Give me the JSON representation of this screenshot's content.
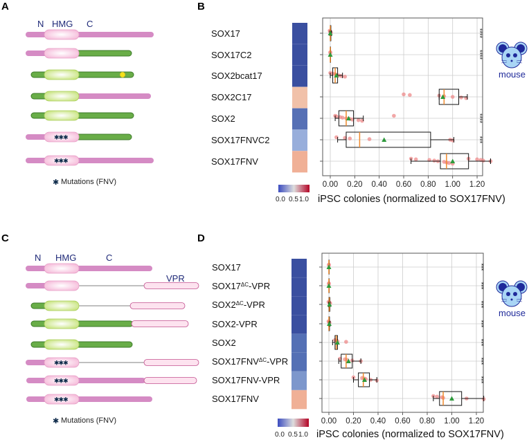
{
  "panels": {
    "A": {
      "label": "A",
      "domains": {
        "n": "N",
        "hmg": "HMG",
        "c": "C"
      },
      "legend": "Mutations (FNV)"
    },
    "B": {
      "label": "B"
    },
    "C": {
      "label": "C",
      "domains": {
        "n": "N",
        "hmg": "HMG",
        "c": "C",
        "vpr": "VPR"
      },
      "legend": "Mutations (FNV)"
    },
    "D": {
      "label": "D"
    }
  },
  "mouse_label": "mouse",
  "colorbar": {
    "labels": [
      "0.0",
      "0.5",
      "1.0"
    ],
    "colors": [
      "#3b4cc0",
      "#dddddd",
      "#b40426"
    ]
  },
  "colors": {
    "box": "#222222",
    "median": "#f08a2c",
    "mean": "#2e9a3c",
    "points": "#ee8a8a",
    "grid": "#cccccc"
  },
  "chart_data": [
    {
      "type": "box",
      "panel": "B",
      "xlabel": "iPSC colonies (normalized to SOX17FNV)",
      "xlim": [
        -0.05,
        1.35
      ],
      "xticks": [
        "0.00",
        "0.20",
        "0.40",
        "0.60",
        "0.80",
        "1.00",
        "1.20"
      ],
      "grid": true,
      "rows": [
        {
          "name": "SOX17",
          "q1": 0.0,
          "median": 0.0,
          "q3": 0.005,
          "whislo": -0.005,
          "whishi": 0.01,
          "mean": 0.0,
          "points": [
            -0.005,
            0.0,
            0.0,
            0.005
          ],
          "heat": 0.0,
          "heat_color": "#3a4fa0",
          "sig": "****"
        },
        {
          "name": "SOX17C2",
          "q1": 0.0,
          "median": 0.0,
          "q3": 0.0,
          "whislo": 0.0,
          "whishi": 0.0,
          "mean": 0.0,
          "points": [
            0.0,
            0.0
          ],
          "heat": 0.0,
          "heat_color": "#3a4fa0",
          "sig": "****"
        },
        {
          "name": "SOX2bcat17",
          "q1": 0.02,
          "median": 0.04,
          "q3": 0.06,
          "whislo": 0.0,
          "whishi": 0.1,
          "mean": 0.05,
          "points": [
            0.0,
            0.02,
            0.04,
            0.05,
            0.07,
            0.09,
            0.12
          ],
          "heat": 0.05,
          "heat_color": "#3a4fa0",
          "sig": ""
        },
        {
          "name": "SOX2C17",
          "q1": 0.89,
          "median": 0.93,
          "q3": 1.05,
          "whislo": 0.89,
          "whishi": 1.12,
          "mean": 0.92,
          "points": [
            0.6,
            0.65,
            0.89,
            0.93,
            1.0,
            1.07,
            1.11
          ],
          "heat": 0.92,
          "heat_color": "#f1c1a9",
          "sig": ""
        },
        {
          "name": "SOX2",
          "q1": 0.07,
          "median": 0.13,
          "q3": 0.19,
          "whislo": 0.04,
          "whishi": 0.27,
          "mean": 0.15,
          "points": [
            0.04,
            0.05,
            0.08,
            0.1,
            0.13,
            0.16,
            0.18,
            0.23,
            0.26,
            0.52
          ],
          "heat": 0.15,
          "heat_color": "#5670b5",
          "sig": "****"
        },
        {
          "name": "SOX17FNVC2",
          "q1": 0.13,
          "median": 0.24,
          "q3": 0.82,
          "whislo": 0.06,
          "whishi": 1.01,
          "mean": 0.44,
          "points": [
            0.05,
            0.12,
            0.16,
            0.32,
            0.98,
            1.0
          ],
          "heat": 0.44,
          "heat_color": "#98aedb",
          "sig": "***"
        },
        {
          "name": "SOX17FNV",
          "q1": 0.9,
          "median": 0.95,
          "q3": 1.13,
          "whislo": 0.66,
          "whishi": 1.31,
          "mean": 1.0,
          "points": [
            0.66,
            0.7,
            0.81,
            0.85,
            0.88,
            0.93,
            0.95,
            0.97,
            1.0,
            1.13,
            1.2,
            1.23,
            1.25,
            1.31
          ],
          "heat": 1.0,
          "heat_color": "#f0b096",
          "sig": ""
        }
      ]
    },
    {
      "type": "box",
      "panel": "D",
      "xlabel": "iPSC colonies (normalized to SOX17FNV)",
      "xlim": [
        -0.05,
        1.3
      ],
      "xticks": [
        "0.00",
        "0.20",
        "0.40",
        "0.60",
        "0.80",
        "1.00",
        "1.20"
      ],
      "grid": true,
      "rows": [
        {
          "name": "SOX17",
          "sup": "",
          "rest": "",
          "q1": 0.0,
          "median": 0.0,
          "q3": 0.0,
          "whislo": 0.0,
          "whishi": 0.0,
          "mean": 0.0,
          "points": [
            0.0,
            0.0
          ],
          "heat": 0.0,
          "heat_color": "#3a4fa0",
          "sig": "***"
        },
        {
          "name": "SOX17",
          "sup": "ΔC",
          "rest": "-VPR",
          "q1": 0.0,
          "median": 0.0,
          "q3": 0.0,
          "whislo": 0.0,
          "whishi": 0.0,
          "mean": 0.0,
          "points": [
            0.0,
            0.0
          ],
          "heat": 0.0,
          "heat_color": "#3a4fa0",
          "sig": "***"
        },
        {
          "name": "SOX2",
          "sup": "ΔC",
          "rest": "-VPR",
          "q1": 0.0,
          "median": 0.003,
          "q3": 0.008,
          "whislo": -0.003,
          "whishi": 0.01,
          "mean": 0.005,
          "points": [
            -0.003,
            0.005,
            0.01
          ],
          "heat": 0.0,
          "heat_color": "#3a4fa0",
          "sig": "***"
        },
        {
          "name": "SOX2-VPR",
          "sup": "",
          "rest": "",
          "q1": 0.0,
          "median": 0.0,
          "q3": 0.005,
          "whislo": -0.003,
          "whishi": 0.01,
          "mean": 0.003,
          "points": [
            -0.003,
            0.0,
            0.005
          ],
          "heat": 0.0,
          "heat_color": "#3a4fa0",
          "sig": "***"
        },
        {
          "name": "SOX2",
          "sup": "",
          "rest": "",
          "q1": 0.05,
          "median": 0.06,
          "q3": 0.07,
          "whislo": 0.03,
          "whishi": 0.07,
          "mean": 0.07,
          "points": [
            0.05,
            0.06,
            0.07,
            0.14
          ],
          "heat": 0.07,
          "heat_color": "#5470b5",
          "sig": "***"
        },
        {
          "name": "SOX17FNV",
          "sup": "ΔC",
          "rest": "-VPR",
          "q1": 0.1,
          "median": 0.14,
          "q3": 0.19,
          "whislo": 0.08,
          "whishi": 0.26,
          "mean": 0.16,
          "points": [
            0.09,
            0.13,
            0.15,
            0.19,
            0.26
          ],
          "heat": 0.15,
          "heat_color": "#5470b5",
          "sig": "***"
        },
        {
          "name": "SOX17FNV-VPR",
          "sup": "",
          "rest": "",
          "q1": 0.24,
          "median": 0.28,
          "q3": 0.33,
          "whislo": 0.2,
          "whishi": 0.39,
          "mean": 0.29,
          "points": [
            0.2,
            0.27,
            0.29,
            0.3,
            0.34,
            0.39
          ],
          "heat": 0.29,
          "heat_color": "#7d97cc",
          "sig": "***"
        },
        {
          "name": "SOX17FNV",
          "sup": "",
          "rest": "",
          "q1": 0.9,
          "median": 0.93,
          "q3": 1.08,
          "whislo": 0.85,
          "whishi": 1.26,
          "mean": 1.0,
          "points": [
            0.85,
            0.88,
            0.92,
            0.93,
            1.12,
            1.26
          ],
          "heat": 1.0,
          "heat_color": "#f0b096",
          "sig": ""
        }
      ]
    }
  ]
}
